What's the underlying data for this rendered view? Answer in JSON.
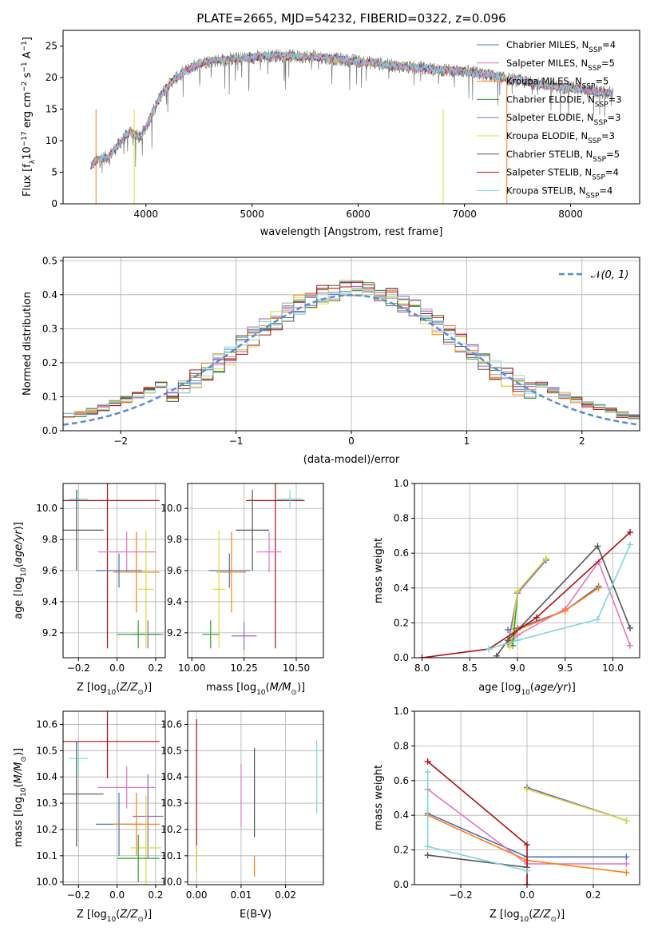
{
  "figure": {
    "title": "PLATE=2665, MJD=54232, FIBERID=0322, z=0.096"
  },
  "models": [
    {
      "name": "Chabrier MILES",
      "nssp": "4",
      "color": "#4c72b0"
    },
    {
      "name": "Salpeter MILES",
      "nssp": "5",
      "color": "#e377c2"
    },
    {
      "name": "Kroupa MILES",
      "nssp": "5",
      "color": "#ff7f0e"
    },
    {
      "name": "Chabrier ELODIE",
      "nssp": "3",
      "color": "#2ca02c"
    },
    {
      "name": "Salpeter ELODIE",
      "nssp": "3",
      "color": "#9467bd"
    },
    {
      "name": "Kroupa ELODIE",
      "nssp": "3",
      "color": "#dbdb3d"
    },
    {
      "name": "Chabrier STELIB",
      "nssp": "5",
      "color": "#555555"
    },
    {
      "name": "Salpeter STELIB",
      "nssp": "4",
      "color": "#b01010"
    },
    {
      "name": "Kroupa STELIB",
      "nssp": "4",
      "color": "#7fd7dd"
    }
  ],
  "chart_data": [
    {
      "id": "spectrum",
      "type": "line",
      "xlabel": "wavelength [Angstrom, rest frame]",
      "ylabel": "Flux [f_λ 10^-17 erg cm^-2 s^-1 A^-1]",
      "xlim": [
        3220,
        8650
      ],
      "ylim": [
        0,
        27.5
      ],
      "xticks": [
        4000,
        5000,
        6000,
        7000,
        8000
      ],
      "yticks": [
        0,
        5,
        10,
        15,
        20,
        25
      ],
      "continuum": {
        "x": [
          3480,
          3550,
          3650,
          3750,
          3850,
          3950,
          4050,
          4150,
          4250,
          4350,
          4450,
          4550,
          4700,
          4850,
          5000,
          5200,
          5400,
          5600,
          5800,
          6000,
          6200,
          6400,
          6600,
          6800,
          7000,
          7200,
          7400,
          7600,
          7800,
          8000,
          8200,
          8400
        ],
        "y": [
          6.0,
          7.0,
          7.5,
          9.5,
          11.5,
          10.5,
          14.0,
          17.5,
          19.5,
          20.8,
          21.8,
          22.5,
          22.8,
          23.0,
          23.2,
          23.5,
          23.4,
          23.3,
          22.9,
          22.6,
          22.2,
          21.8,
          21.5,
          21.2,
          21.0,
          20.5,
          19.8,
          19.3,
          18.7,
          18.4,
          17.8,
          17.5
        ]
      },
      "series": [
        {
          "name": "Chabrier MILES",
          "legend": "Chabrier MILES, N_SSP=4"
        },
        {
          "name": "Salpeter MILES",
          "legend": "Salpeter MILES, N_SSP=5"
        },
        {
          "name": "Kroupa MILES",
          "legend": "Kroupa MILES, N_SSP=5"
        },
        {
          "name": "Chabrier ELODIE",
          "legend": "Chabrier ELODIE, N_SSP=3"
        },
        {
          "name": "Salpeter ELODIE",
          "legend": "Salpeter ELODIE, N_SSP=3"
        },
        {
          "name": "Kroupa ELODIE",
          "legend": "Kroupa ELODIE, N_SSP=3"
        },
        {
          "name": "Chabrier STELIB",
          "legend": "Chabrier STELIB, N_SSP=5"
        },
        {
          "name": "Salpeter STELIB",
          "legend": "Salpeter STELIB, N_SSP=4"
        },
        {
          "name": "Kroupa STELIB",
          "legend": "Kroupa STELIB, N_SSP=4"
        }
      ]
    },
    {
      "id": "residuals",
      "type": "line",
      "xlabel": "(data-model)/error",
      "ylabel": "Normed distribution",
      "xlim": [
        -2.5,
        2.5
      ],
      "ylim": [
        0,
        0.51
      ],
      "xticks": [
        -2,
        -1,
        0,
        1,
        2
      ],
      "yticks": [
        0.0,
        0.1,
        0.2,
        0.3,
        0.4,
        0.5
      ],
      "reference": {
        "name": "N(0,1)",
        "mu": 0,
        "sigma": 1,
        "color": "#5b8ad6"
      },
      "bin_width": 0.1
    },
    {
      "id": "age_vs_z",
      "type": "scatter",
      "xlabel": "Z [log10(Z/Z⊙)]",
      "ylabel": "age [log10(age/yr)]",
      "xlim": [
        -0.28,
        0.25
      ],
      "ylim": [
        9.04,
        10.16
      ],
      "xticks": [
        -0.2,
        0.0,
        0.2
      ],
      "yticks": [
        9.2,
        9.4,
        9.6,
        9.8,
        10.0
      ],
      "points": [
        {
          "model": "Kroupa STELIB",
          "x": -0.2,
          "xerr": 0.05,
          "y": 10.06,
          "yerr": 0.06
        },
        {
          "model": "Salpeter STELIB",
          "x": -0.05,
          "xerr": 0.27,
          "y": 10.05,
          "yerr": 0.95
        },
        {
          "model": "Chabrier STELIB",
          "x": -0.21,
          "xerr": 0.14,
          "y": 9.86,
          "yerr": 0.26
        },
        {
          "model": "Salpeter MILES",
          "x": 0.05,
          "xerr": 0.15,
          "y": 9.72,
          "yerr": 0.13
        },
        {
          "model": "Chabrier MILES",
          "x": 0.01,
          "xerr": 0.12,
          "y": 9.6,
          "yerr": 0.11
        },
        {
          "model": "Kroupa MILES",
          "x": 0.1,
          "xerr": 0.12,
          "y": 9.59,
          "yerr": 0.26
        },
        {
          "model": "Salpeter ELODIE",
          "x": 0.16,
          "xerr": 0.08,
          "y": 9.19,
          "yerr": 0.09
        },
        {
          "model": "Chabrier ELODIE",
          "x": 0.11,
          "xerr": 0.11,
          "y": 9.19,
          "yerr": 0.09
        },
        {
          "model": "Kroupa ELODIE",
          "x": 0.15,
          "xerr": 0.04,
          "y": 9.48,
          "yerr": 0.38
        }
      ]
    },
    {
      "id": "age_vs_mass",
      "type": "scatter",
      "xlabel": "mass [log10(M/M⊙)]",
      "ylabel": "",
      "xlim": [
        9.98,
        10.63
      ],
      "ylim": [
        9.04,
        10.16
      ],
      "xticks": [
        10.0,
        10.25,
        10.5
      ],
      "yticks": [
        9.2,
        9.4,
        9.6,
        9.8,
        10.0
      ],
      "points": [
        {
          "model": "Salpeter STELIB",
          "x": 10.4,
          "xerr": 0.14,
          "y": 10.05,
          "yerr": 0.95
        },
        {
          "model": "Kroupa STELIB",
          "x": 10.47,
          "xerr": 0.06,
          "y": 10.06,
          "yerr": 0.06
        },
        {
          "model": "Chabrier STELIB",
          "x": 10.29,
          "xerr": 0.08,
          "y": 9.86,
          "yerr": 0.26
        },
        {
          "model": "Salpeter MILES",
          "x": 10.37,
          "xerr": 0.06,
          "y": 9.72,
          "yerr": 0.13
        },
        {
          "model": "Chabrier MILES",
          "x": 10.18,
          "xerr": 0.1,
          "y": 9.6,
          "yerr": 0.11
        },
        {
          "model": "Kroupa MILES",
          "x": 10.19,
          "xerr": 0.07,
          "y": 9.59,
          "yerr": 0.26
        },
        {
          "model": "Kroupa ELODIE",
          "x": 10.13,
          "xerr": 0.03,
          "y": 9.48,
          "yerr": 0.38
        },
        {
          "model": "Salpeter ELODIE",
          "x": 10.25,
          "xerr": 0.06,
          "y": 9.18,
          "yerr": 0.09
        },
        {
          "model": "Chabrier ELODIE",
          "x": 10.09,
          "xerr": 0.04,
          "y": 9.19,
          "yerr": 0.09
        }
      ]
    },
    {
      "id": "massweight_vs_age",
      "type": "line",
      "xlabel": "age [log10(age/yr)]",
      "ylabel": "mass weight",
      "xlim": [
        7.92,
        10.28
      ],
      "ylim": [
        0,
        1.0
      ],
      "xticks": [
        8.0,
        8.5,
        9.0,
        9.5,
        10.0
      ],
      "yticks": [
        0.0,
        0.2,
        0.4,
        0.6,
        0.8,
        1.0
      ],
      "series": [
        {
          "model": "Chabrier MILES",
          "x": [
            8.9,
            9.0,
            9.5,
            9.85
          ],
          "y": [
            0.16,
            0.17,
            0.27,
            0.41
          ]
        },
        {
          "model": "Salpeter MILES",
          "x": [
            8.92,
            9.0,
            9.5,
            9.85,
            10.18
          ],
          "y": [
            0.08,
            0.13,
            0.28,
            0.55,
            0.07
          ]
        },
        {
          "model": "Kroupa MILES",
          "x": [
            8.92,
            9.0,
            9.5,
            9.85
          ],
          "y": [
            0.08,
            0.16,
            0.27,
            0.4
          ]
        },
        {
          "model": "Chabrier ELODIE",
          "x": [
            8.95,
            9.0,
            9.3
          ],
          "y": [
            0.07,
            0.37,
            0.56
          ]
        },
        {
          "model": "Salpeter ELODIE",
          "x": [
            8.9,
            9.0,
            9.3
          ],
          "y": [
            0.08,
            0.37,
            0.56
          ]
        },
        {
          "model": "Kroupa ELODIE",
          "x": [
            8.92,
            9.0,
            9.3
          ],
          "y": [
            0.06,
            0.38,
            0.57
          ]
        },
        {
          "model": "Chabrier STELIB",
          "x": [
            8.78,
            8.9,
            9.84,
            10.18
          ],
          "y": [
            0.01,
            0.1,
            0.64,
            0.17
          ]
        },
        {
          "model": "Salpeter STELIB",
          "x": [
            8.0,
            8.7,
            9.2,
            10.18
          ],
          "y": [
            0.0,
            0.05,
            0.23,
            0.72
          ]
        },
        {
          "model": "Kroupa STELIB",
          "x": [
            8.7,
            9.0,
            9.84,
            10.18
          ],
          "y": [
            0.05,
            0.1,
            0.22,
            0.65
          ]
        }
      ]
    },
    {
      "id": "mass_vs_z",
      "type": "scatter",
      "xlabel": "Z [log10(Z/Z⊙)]",
      "ylabel": "mass [log10(M/M⊙)]",
      "xlim": [
        -0.28,
        0.25
      ],
      "ylim": [
        9.99,
        10.65
      ],
      "xticks": [
        -0.2,
        0.0,
        0.2
      ],
      "yticks": [
        10.0,
        10.1,
        10.2,
        10.3,
        10.4,
        10.5,
        10.6
      ],
      "points": [
        {
          "model": "Salpeter STELIB",
          "x": -0.05,
          "xerr": 0.27,
          "y": 10.535,
          "yerr": 0.14
        },
        {
          "model": "Kroupa STELIB",
          "x": -0.2,
          "xerr": 0.05,
          "y": 10.47,
          "yerr": 0.06
        },
        {
          "model": "Salpeter MILES",
          "x": 0.05,
          "xerr": 0.15,
          "y": 10.36,
          "yerr": 0.08
        },
        {
          "model": "Chabrier STELIB",
          "x": -0.21,
          "xerr": 0.14,
          "y": 10.335,
          "yerr": 0.2
        },
        {
          "model": "Salpeter ELODIE",
          "x": 0.16,
          "xerr": 0.08,
          "y": 10.25,
          "yerr": 0.16
        },
        {
          "model": "Chabrier MILES",
          "x": 0.01,
          "xerr": 0.12,
          "y": 10.22,
          "yerr": 0.12
        },
        {
          "model": "Kroupa MILES",
          "x": 0.1,
          "xerr": 0.12,
          "y": 10.22,
          "yerr": 0.12
        },
        {
          "model": "Kroupa ELODIE",
          "x": 0.15,
          "xerr": 0.08,
          "y": 10.13,
          "yerr": 0.2
        },
        {
          "model": "Chabrier ELODIE",
          "x": 0.11,
          "xerr": 0.11,
          "y": 10.09,
          "yerr": 0.09
        }
      ]
    },
    {
      "id": "mass_vs_ebv",
      "type": "scatter",
      "xlabel": "E(B-V)",
      "ylabel": "",
      "xlim": [
        -0.002,
        0.0285
      ],
      "ylim": [
        9.99,
        10.65
      ],
      "xticks": [
        0.0,
        0.01,
        0.02
      ],
      "yticks": [
        10.0,
        10.1,
        10.2,
        10.3,
        10.4,
        10.5,
        10.6
      ],
      "points": [
        {
          "model": "Salpeter STELIB",
          "x": 0.0,
          "y": 10.33,
          "yerr": 0.29
        },
        {
          "model": "Kroupa ELODIE",
          "x": 0.0,
          "y": 10.09,
          "yerr": 0.05
        },
        {
          "model": "Salpeter MILES",
          "x": 0.01,
          "y": 10.33,
          "yerr": 0.12
        },
        {
          "model": "Chabrier STELIB",
          "x": 0.013,
          "y": 10.34,
          "yerr": 0.17
        },
        {
          "model": "Kroupa MILES",
          "x": 0.013,
          "y": 10.06,
          "yerr": 0.04
        },
        {
          "model": "Kroupa STELIB",
          "x": 0.027,
          "y": 10.4,
          "yerr": 0.14
        }
      ]
    },
    {
      "id": "massweight_vs_z",
      "type": "line",
      "xlabel": "Z [log10(Z/Z⊙)]",
      "ylabel": "mass weight",
      "xlim": [
        -0.34,
        0.34
      ],
      "ylim": [
        0,
        1.0
      ],
      "xticks": [
        -0.2,
        0.0,
        0.2
      ],
      "yticks": [
        0.0,
        0.2,
        0.4,
        0.6,
        0.8,
        1.0
      ],
      "series": [
        {
          "model": "Chabrier MILES",
          "x": [
            -0.3,
            0.0,
            0.3
          ],
          "y": [
            0.41,
            0.16,
            0.16
          ]
        },
        {
          "model": "Salpeter MILES",
          "x": [
            -0.3,
            0.0,
            0.3
          ],
          "y": [
            0.55,
            0.12,
            0.12
          ]
        },
        {
          "model": "Kroupa MILES",
          "x": [
            -0.3,
            0.0,
            0.3
          ],
          "y": [
            0.4,
            0.14,
            0.07
          ]
        },
        {
          "model": "Chabrier ELODIE",
          "x": [
            0.0,
            0.3
          ],
          "y": [
            0.56,
            0.37
          ]
        },
        {
          "model": "Salpeter ELODIE",
          "x": [
            0.0,
            0.3
          ],
          "y": [
            0.56,
            0.37
          ]
        },
        {
          "model": "Kroupa ELODIE",
          "x": [
            0.0,
            0.3
          ],
          "y": [
            0.55,
            0.37
          ]
        },
        {
          "model": "Chabrier STELIB",
          "x": [
            -0.3,
            0.0,
            0.0
          ],
          "y": [
            0.17,
            0.1,
            0.0
          ]
        },
        {
          "model": "Salpeter STELIB",
          "x": [
            -0.3,
            0.0,
            0.0
          ],
          "y": [
            0.71,
            0.23,
            0.0
          ]
        },
        {
          "model": "Kroupa STELIB",
          "x": [
            -0.3,
            -0.3,
            0.0
          ],
          "y": [
            0.65,
            0.22,
            0.08
          ]
        }
      ]
    }
  ]
}
